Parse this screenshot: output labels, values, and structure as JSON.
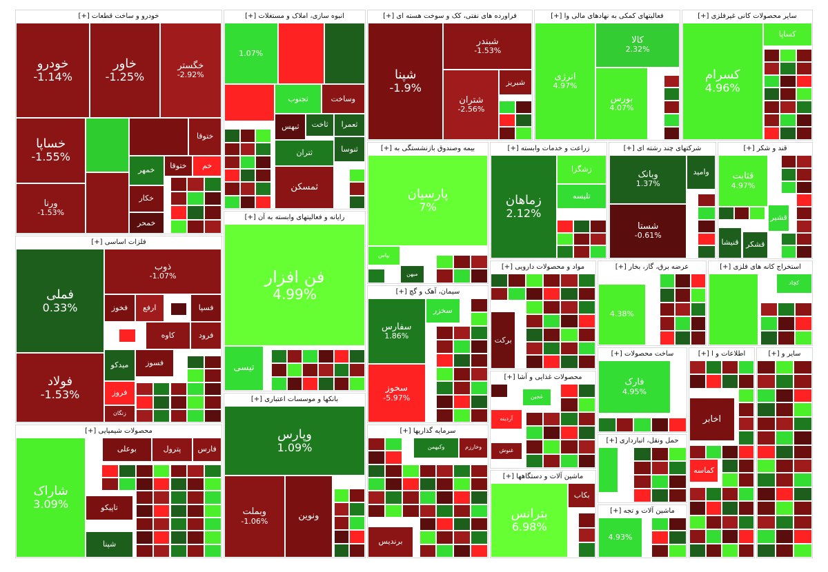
{
  "chart_data": {
    "type": "treemap",
    "color_scale": {
      "strong_down": "#6b0f0f",
      "down": "#8b1414",
      "mild_down": "#a01c1c",
      "flat": "#1d5e1d",
      "up": "#1e7a1e",
      "strong_up": "#33dd33",
      "neon_up": "#66ff33"
    },
    "sectors": [
      {
        "name": "خودرو و ساخت قطعات [+]",
        "stocks": [
          {
            "symbol": "خودرو",
            "change": "-1.14%",
            "color": "#8b1414"
          },
          {
            "symbol": "خاور",
            "change": "-1.25%",
            "color": "#8b1414"
          },
          {
            "symbol": "خگستر",
            "change": "-2.92%",
            "color": "#a01c1c"
          },
          {
            "symbol": "خساپا",
            "change": "-1.55%",
            "color": "#8b1414"
          },
          {
            "symbol": "",
            "change": "",
            "color": "#2ecc2e"
          },
          {
            "symbol": "",
            "change": "",
            "color": "#7a1010"
          },
          {
            "symbol": "ختوقا",
            "change": "",
            "color": "#8b1414"
          },
          {
            "symbol": "خمهر",
            "change": "",
            "color": "#1e7a1e"
          },
          {
            "symbol": "ختوقا",
            "change": "",
            "color": "#7a1010"
          },
          {
            "symbol": "خم",
            "change": "",
            "color": "#ff2222"
          },
          {
            "symbol": "ورنا",
            "change": "-1.53%",
            "color": "#8b1414"
          },
          {
            "symbol": "",
            "change": "",
            "color": "#8b1414"
          },
          {
            "symbol": "خکار",
            "change": "",
            "color": "#7a1010"
          },
          {
            "symbol": "خمحر",
            "change": "",
            "color": "#5a0d0d"
          }
        ]
      },
      {
        "name": "انبوه سازی، املاک و مستغلات [+]",
        "stocks": [
          {
            "symbol": "",
            "change": "1.07%",
            "color": "#33dd33"
          },
          {
            "symbol": "",
            "change": "",
            "color": "#ff2222"
          },
          {
            "symbol": "",
            "change": "",
            "color": "#1d5e1d"
          },
          {
            "symbol": "",
            "change": "",
            "color": "#ff2222"
          },
          {
            "symbol": "ثجنوب",
            "change": "",
            "color": "#33dd33"
          },
          {
            "symbol": "وساخت",
            "change": "",
            "color": "#8b1414"
          },
          {
            "symbol": "ثبهس",
            "change": "",
            "color": "#5a0d0d"
          },
          {
            "symbol": "ثاخت",
            "change": "",
            "color": "#1d5e1d"
          },
          {
            "symbol": "ثعمرا",
            "change": "",
            "color": "#1d5e1d"
          },
          {
            "symbol": "ثتران",
            "change": "",
            "color": "#1e7a1e"
          },
          {
            "symbol": "ثنوسا",
            "change": "",
            "color": "#1d5e1d"
          },
          {
            "symbol": "ثمسکن",
            "change": "",
            "color": "#8b1414"
          }
        ]
      },
      {
        "name": "فراورده های نفتی، کک و سوخت هسته ای [+]",
        "stocks": [
          {
            "symbol": "شپنا",
            "change": "-1.9%",
            "color": "#7a1010"
          },
          {
            "symbol": "شبندر",
            "change": "-1.53%",
            "color": "#8b1414"
          },
          {
            "symbol": "شتران",
            "change": "-2.56%",
            "color": "#a01c1c"
          },
          {
            "symbol": "شبریز",
            "change": "",
            "color": "#8b1414"
          }
        ]
      },
      {
        "name": "فعالیتهای کمکی به نهادهای مالی وا [+]",
        "stocks": [
          {
            "symbol": "انرژی",
            "change": "4.97%",
            "color": "#4cf02a"
          },
          {
            "symbol": "کالا",
            "change": "2.32%",
            "color": "#33cc33"
          },
          {
            "symbol": "بورس",
            "change": "4.07%",
            "color": "#4cf02a"
          }
        ]
      },
      {
        "name": "سایر محصولات کانی غیرفلزی [+]",
        "stocks": [
          {
            "symbol": "کسرام",
            "change": "4.96%",
            "color": "#4cf02a"
          },
          {
            "symbol": "کساپا",
            "change": "",
            "color": "#4cf02a"
          }
        ]
      },
      {
        "name": "فلزات اساسی [+]",
        "stocks": [
          {
            "symbol": "فملی",
            "change": "0.33%",
            "color": "#1d5e1d"
          },
          {
            "symbol": "ذوب",
            "change": "-1.07%",
            "color": "#8b1414"
          },
          {
            "symbol": "فولاد",
            "change": "-1.53%",
            "color": "#8b1414"
          },
          {
            "symbol": "فخوز",
            "change": "",
            "color": "#7a1010"
          },
          {
            "symbol": "ارفع",
            "change": "",
            "color": "#a01c1c"
          },
          {
            "symbol": "فسپا",
            "change": "",
            "color": "#7a1010"
          },
          {
            "symbol": "فرود",
            "change": "",
            "color": "#8b1414"
          },
          {
            "symbol": "کاوه",
            "change": "",
            "color": "#8b1414"
          },
          {
            "symbol": "فسوز",
            "change": "",
            "color": "#7a1010"
          },
          {
            "symbol": "میدکو",
            "change": "",
            "color": "#1d5e1d"
          },
          {
            "symbol": "فروز",
            "change": "",
            "color": "#ff2222"
          },
          {
            "symbol": "زنگان",
            "change": "",
            "color": "#8b1414"
          }
        ]
      },
      {
        "name": "رایانه و فعالیتهای وابسته به آن [+]",
        "stocks": [
          {
            "symbol": "فن افزار",
            "change": "4.99%",
            "color": "#66ff33"
          },
          {
            "symbol": "تیسی",
            "change": "",
            "color": "#33dd33"
          }
        ]
      },
      {
        "name": "بیمه وصندوق بازنشستگی به [+]",
        "stocks": [
          {
            "symbol": "پارسیان",
            "change": "7%",
            "color": "#66ff33"
          },
          {
            "symbol": "بپاس",
            "change": "",
            "color": "#4cf02a"
          },
          {
            "symbol": "میهن",
            "change": "",
            "color": "#1d5e1d"
          }
        ]
      },
      {
        "name": "زراعت و خدمات وابسته [+]",
        "stocks": [
          {
            "symbol": "زماهان",
            "change": "2.12%",
            "color": "#1e7a1e"
          },
          {
            "symbol": "زشگزا",
            "change": "",
            "color": "#4cf02a"
          },
          {
            "symbol": "تلیسه",
            "change": "",
            "color": "#33dd33"
          }
        ]
      },
      {
        "name": "شرکتهای چند رشته ای [+]",
        "stocks": [
          {
            "symbol": "وبانک",
            "change": "1.37%",
            "color": "#1d5e1d"
          },
          {
            "symbol": "شستا",
            "change": "-0.61%",
            "color": "#5a0d0d"
          },
          {
            "symbol": "وامید",
            "change": "",
            "color": "#1d5e1d"
          }
        ]
      },
      {
        "name": "قند و شکر [+]",
        "stocks": [
          {
            "symbol": "قثابت",
            "change": "4.97%",
            "color": "#4cf02a"
          },
          {
            "symbol": "قشیر",
            "change": "",
            "color": "#33dd33"
          },
          {
            "symbol": "قنیشا",
            "change": "",
            "color": "#1d5e1d"
          },
          {
            "symbol": "قشکر",
            "change": "",
            "color": "#1d5e1d"
          }
        ]
      },
      {
        "name": "مواد و محصولات دارویی [+]",
        "stocks": [
          {
            "symbol": "برکت",
            "change": "",
            "color": "#6b0f0f"
          }
        ]
      },
      {
        "name": "عرضه برق، گاز، بخار [+]",
        "stocks": [
          {
            "symbol": "",
            "change": "4.38%",
            "color": "#4cf02a"
          }
        ]
      },
      {
        "name": "استخراج کانه های فلزی [+]",
        "stocks": [
          {
            "symbol": "",
            "change": "",
            "color": "#4cf02a"
          },
          {
            "symbol": "کچاد",
            "change": "",
            "color": "#33dd33"
          }
        ]
      },
      {
        "name": "سیمان، آهک و گچ [+]",
        "stocks": [
          {
            "symbol": "سفارس",
            "change": "1.86%",
            "color": "#1e7a1e"
          },
          {
            "symbol": "سخوز",
            "change": "-5.97%",
            "color": "#ff2222"
          },
          {
            "symbol": "سخزر",
            "change": "",
            "color": "#33dd33"
          }
        ]
      },
      {
        "name": "محصولات غذایی و آشا [+]",
        "stocks": [
          {
            "symbol": "غجین",
            "change": "",
            "color": "#33dd33"
          },
          {
            "symbol": "آردینه",
            "change": "",
            "color": "#ff2222"
          },
          {
            "symbol": "غنوش",
            "change": "",
            "color": "#8b1414"
          }
        ]
      },
      {
        "name": "ساخت محصولات [+]",
        "stocks": [
          {
            "symbol": "فارک",
            "change": "4.95%",
            "color": "#33dd33"
          }
        ]
      },
      {
        "name": "بانکها و موسسات اعتباری [+]",
        "stocks": [
          {
            "symbol": "وپارس",
            "change": "1.09%",
            "color": "#1e7a1e"
          },
          {
            "symbol": "وبملت",
            "change": "-1.06%",
            "color": "#8b1414"
          },
          {
            "symbol": "ونوین",
            "change": "",
            "color": "#7a1010"
          }
        ]
      },
      {
        "name": "محصولات شیمیایی [+]",
        "stocks": [
          {
            "symbol": "شاراک",
            "change": "3.09%",
            "color": "#4cf02a"
          },
          {
            "symbol": "بوعلی",
            "change": "",
            "color": "#7a1010"
          },
          {
            "symbol": "پترول",
            "change": "",
            "color": "#8b1414"
          },
          {
            "symbol": "فارس",
            "change": "",
            "color": "#8b1414"
          },
          {
            "symbol": "تاپیکو",
            "change": "",
            "color": "#7a1010"
          },
          {
            "symbol": "شپنا",
            "change": "",
            "color": "#1d5e1d"
          }
        ]
      },
      {
        "name": "سرمایه گذاریها [+]",
        "stocks": [
          {
            "symbol": "وکبهمن",
            "change": "",
            "color": "#1e7a1e"
          },
          {
            "symbol": "وخارزم",
            "change": "",
            "color": "#8b1414"
          },
          {
            "symbol": "برندیس",
            "change": "",
            "color": "#8b1414"
          }
        ]
      },
      {
        "name": "ماشین آلات و دستگاهها [+]",
        "stocks": [
          {
            "symbol": "بترانس",
            "change": "6.98%",
            "color": "#66ff33"
          },
          {
            "symbol": "بکاب",
            "change": "",
            "color": "#8b1414"
          }
        ]
      },
      {
        "name": "حمل ونقل، انبارداری [+]",
        "stocks": [
          {
            "symbol": "",
            "change": "",
            "color": "#33dd33"
          }
        ]
      },
      {
        "name": "ماشین آلات و تجه [+]",
        "stocks": [
          {
            "symbol": "",
            "change": "4.93%",
            "color": "#33dd33"
          }
        ]
      },
      {
        "name": "اطلاعات و ا [+]",
        "stocks": [
          {
            "symbol": "اخابر",
            "change": "",
            "color": "#7a1010"
          },
          {
            "symbol": "کماسه",
            "change": "",
            "color": "#ff2222"
          }
        ]
      },
      {
        "name": "سایر و [+]",
        "stocks": []
      }
    ]
  }
}
